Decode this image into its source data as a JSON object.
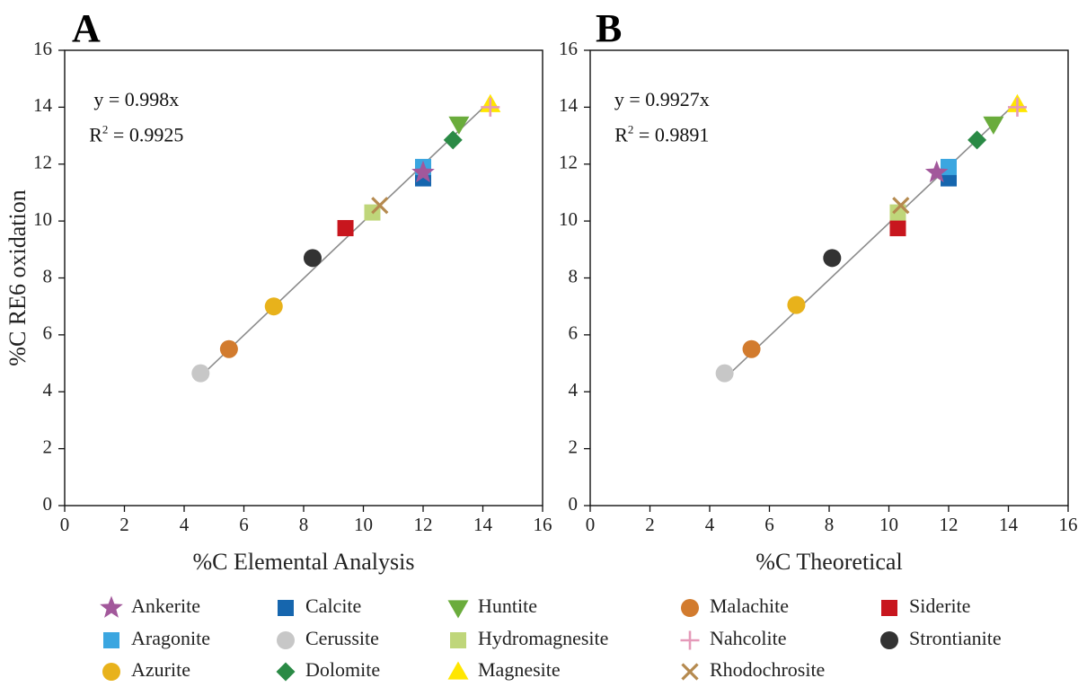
{
  "chart_data": [
    {
      "type": "scatter",
      "panel": "A",
      "xlabel": "%C Elemental Analysis",
      "ylabel": "%C RE6 oxidation",
      "xlim": [
        0,
        16
      ],
      "ylim": [
        0,
        16
      ],
      "xticks": [
        "0",
        "2",
        "4",
        "6",
        "8",
        "10",
        "12",
        "14",
        "16"
      ],
      "yticks": [
        "0",
        "2",
        "4",
        "6",
        "8",
        "10",
        "12",
        "14",
        "16"
      ],
      "equation": "y = 0.998x",
      "r2_prefix": "R",
      "r2_sup": "2",
      "r2_value": " = 0.9925",
      "fit": {
        "slope": 0.998,
        "x_range": [
          4.5,
          14.3
        ]
      },
      "points": [
        {
          "mineral": "Cerussite",
          "x": 4.55,
          "y": 4.65
        },
        {
          "mineral": "Malachite",
          "x": 5.5,
          "y": 5.5
        },
        {
          "mineral": "Azurite",
          "x": 7.0,
          "y": 7.0
        },
        {
          "mineral": "Strontianite",
          "x": 8.3,
          "y": 8.7
        },
        {
          "mineral": "Siderite",
          "x": 9.4,
          "y": 9.75
        },
        {
          "mineral": "Hydromagnesite",
          "x": 10.3,
          "y": 10.3
        },
        {
          "mineral": "Rhodochrosite",
          "x": 10.55,
          "y": 10.55
        },
        {
          "mineral": "Calcite",
          "x": 12.0,
          "y": 11.5
        },
        {
          "mineral": "Aragonite",
          "x": 12.0,
          "y": 11.9
        },
        {
          "mineral": "Ankerite",
          "x": 12.0,
          "y": 11.7
        },
        {
          "mineral": "Dolomite",
          "x": 13.0,
          "y": 12.85
        },
        {
          "mineral": "Huntite",
          "x": 13.2,
          "y": 13.4
        },
        {
          "mineral": "Magnesite",
          "x": 14.25,
          "y": 14.1
        },
        {
          "mineral": "Nahcolite",
          "x": 14.25,
          "y": 14.0
        }
      ]
    },
    {
      "type": "scatter",
      "panel": "B",
      "xlabel": "%C Theoretical",
      "ylabel": "",
      "xlim": [
        0,
        16
      ],
      "ylim": [
        0,
        16
      ],
      "xticks": [
        "0",
        "2",
        "4",
        "6",
        "8",
        "10",
        "12",
        "14",
        "16"
      ],
      "yticks": [
        "0",
        "2",
        "4",
        "6",
        "8",
        "10",
        "12",
        "14",
        "16"
      ],
      "equation": "y = 0.9927x",
      "r2_prefix": "R",
      "r2_sup": "2",
      "r2_value": " = 0.9891",
      "fit": {
        "slope": 0.9927,
        "x_range": [
          4.5,
          14.3
        ]
      },
      "points": [
        {
          "mineral": "Cerussite",
          "x": 4.5,
          "y": 4.65
        },
        {
          "mineral": "Malachite",
          "x": 5.4,
          "y": 5.5
        },
        {
          "mineral": "Azurite",
          "x": 6.9,
          "y": 7.05
        },
        {
          "mineral": "Strontianite",
          "x": 8.1,
          "y": 8.7
        },
        {
          "mineral": "Siderite",
          "x": 10.3,
          "y": 9.75
        },
        {
          "mineral": "Hydromagnesite",
          "x": 10.3,
          "y": 10.3
        },
        {
          "mineral": "Rhodochrosite",
          "x": 10.4,
          "y": 10.55
        },
        {
          "mineral": "Calcite",
          "x": 12.0,
          "y": 11.5
        },
        {
          "mineral": "Aragonite",
          "x": 12.0,
          "y": 11.9
        },
        {
          "mineral": "Ankerite",
          "x": 11.6,
          "y": 11.7
        },
        {
          "mineral": "Dolomite",
          "x": 12.95,
          "y": 12.85
        },
        {
          "mineral": "Huntite",
          "x": 13.5,
          "y": 13.4
        },
        {
          "mineral": "Magnesite",
          "x": 14.3,
          "y": 14.1
        },
        {
          "mineral": "Nahcolite",
          "x": 14.3,
          "y": 14.0
        }
      ]
    }
  ],
  "legend": [
    {
      "name": "Ankerite",
      "shape": "star",
      "color": "#a2589b"
    },
    {
      "name": "Aragonite",
      "shape": "square",
      "color": "#3ba6e0"
    },
    {
      "name": "Azurite",
      "shape": "circle",
      "color": "#e8b21b"
    },
    {
      "name": "Calcite",
      "shape": "square",
      "color": "#1666ae"
    },
    {
      "name": "Cerussite",
      "shape": "circle",
      "color": "#c7c7c7"
    },
    {
      "name": "Dolomite",
      "shape": "diamond",
      "color": "#2a8a45"
    },
    {
      "name": "Huntite",
      "shape": "triangle-down",
      "color": "#6aac3c"
    },
    {
      "name": "Hydromagnesite",
      "shape": "square",
      "color": "#bfd67a"
    },
    {
      "name": "Magnesite",
      "shape": "triangle-up",
      "color": "#ffe600"
    },
    {
      "name": "Malachite",
      "shape": "circle",
      "color": "#d27b2e"
    },
    {
      "name": "Nahcolite",
      "shape": "plus",
      "color": "#e59ab9"
    },
    {
      "name": "Rhodochrosite",
      "shape": "x",
      "color": "#b58a4f"
    },
    {
      "name": "Siderite",
      "shape": "square",
      "color": "#c8161e"
    },
    {
      "name": "Strontianite",
      "shape": "circle",
      "color": "#333333"
    }
  ],
  "colors": {
    "fit_line": "#8c8c8c",
    "axis": "#111111"
  }
}
